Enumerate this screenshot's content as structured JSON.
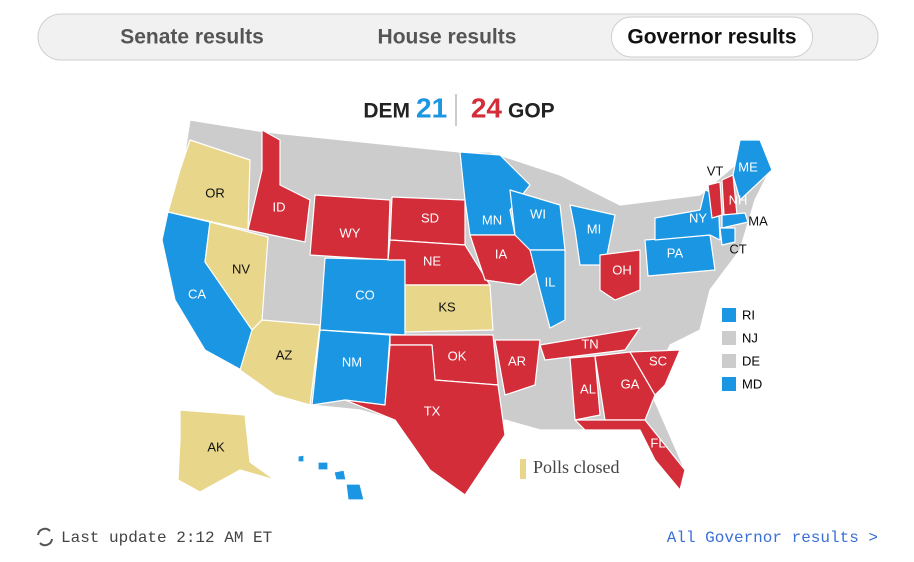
{
  "tabs": [
    {
      "label": "Senate results",
      "active": false
    },
    {
      "label": "House results",
      "active": false
    },
    {
      "label": "Governor results",
      "active": true
    }
  ],
  "header": {
    "dem_label": "DEM",
    "dem_count": 21,
    "gop_count": 24,
    "gop_label": "GOP"
  },
  "map": {
    "colors": {
      "dem": "#1a96e3",
      "gop": "#d42d3a",
      "closed": "#e8d68a",
      "none": "#cccccc"
    },
    "states": [
      {
        "label": "OR",
        "result": "closed"
      },
      {
        "label": "CA",
        "result": "dem"
      },
      {
        "label": "NV",
        "result": "closed"
      },
      {
        "label": "ID",
        "result": "gop"
      },
      {
        "label": "AZ",
        "result": "closed"
      },
      {
        "label": "WY",
        "result": "gop"
      },
      {
        "label": "CO",
        "result": "dem"
      },
      {
        "label": "NM",
        "result": "dem"
      },
      {
        "label": "SD",
        "result": "gop"
      },
      {
        "label": "NE",
        "result": "gop"
      },
      {
        "label": "KS",
        "result": "closed"
      },
      {
        "label": "OK",
        "result": "gop"
      },
      {
        "label": "TX",
        "result": "gop"
      },
      {
        "label": "MN",
        "result": "dem"
      },
      {
        "label": "IA",
        "result": "gop"
      },
      {
        "label": "WI",
        "result": "dem"
      },
      {
        "label": "IL",
        "result": "dem"
      },
      {
        "label": "MI",
        "result": "dem"
      },
      {
        "label": "AR",
        "result": "gop"
      },
      {
        "label": "TN",
        "result": "gop"
      },
      {
        "label": "AL",
        "result": "gop"
      },
      {
        "label": "GA",
        "result": "gop"
      },
      {
        "label": "SC",
        "result": "gop"
      },
      {
        "label": "FL",
        "result": "gop"
      },
      {
        "label": "OH",
        "result": "gop"
      },
      {
        "label": "PA",
        "result": "dem"
      },
      {
        "label": "NY",
        "result": "dem"
      },
      {
        "label": "VT",
        "result": "gop"
      },
      {
        "label": "NH",
        "result": "gop"
      },
      {
        "label": "ME",
        "result": "dem"
      },
      {
        "label": "MA",
        "result": "dem"
      },
      {
        "label": "CT",
        "result": "dem"
      },
      {
        "label": "AK",
        "result": "closed"
      },
      {
        "result": "dem"
      }
    ],
    "small_states": [
      {
        "label": "RI",
        "result": "dem"
      },
      {
        "label": "NJ",
        "result": "none"
      },
      {
        "label": "DE",
        "result": "none"
      },
      {
        "label": "MD",
        "result": "dem"
      }
    ],
    "polls_closed_label": "Polls closed"
  },
  "footer": {
    "last_update": "Last update 2:12 AM ET",
    "link": "All Governor results >"
  }
}
